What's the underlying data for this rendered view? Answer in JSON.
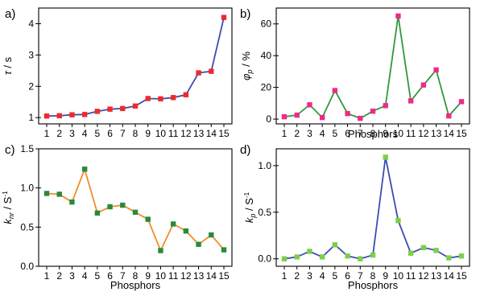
{
  "chart_data": [
    {
      "panel_label": "a)",
      "type": "line",
      "xlabel": "Phosphors",
      "ylabel_parts": [
        "τ",
        " / s"
      ],
      "categories": [
        "1",
        "2",
        "3",
        "4",
        "5",
        "6",
        "7",
        "8",
        "9",
        "10",
        "11",
        "12",
        "13",
        "14",
        "15"
      ],
      "values": [
        1.05,
        1.06,
        1.09,
        1.1,
        1.2,
        1.27,
        1.29,
        1.37,
        1.61,
        1.6,
        1.64,
        1.73,
        2.43,
        2.48,
        4.2
      ],
      "ylim": [
        0.8,
        4.5
      ],
      "yticks": [
        "1",
        "2",
        "3",
        "4"
      ],
      "line_color": "#3a4db0",
      "marker_color": "#ee2a2a",
      "show_xlabel": false
    },
    {
      "panel_label": "b)",
      "type": "line",
      "xlabel": "Phosphors",
      "ylabel_parts": [
        "φ",
        "p",
        " / %"
      ],
      "categories": [
        "1",
        "2",
        "3",
        "4",
        "5",
        "6",
        "7",
        "8",
        "9",
        "10",
        "11",
        "12",
        "13",
        "14",
        "15"
      ],
      "values": [
        1.5,
        2.5,
        9,
        1,
        18,
        3.5,
        0.5,
        5,
        8.5,
        65,
        11.5,
        21.5,
        31,
        2,
        11
      ],
      "ylim": [
        -3,
        70
      ],
      "yticks": [
        "0",
        "20",
        "40",
        "60"
      ],
      "line_color": "#2e9a3a",
      "marker_color": "#ee2a8a",
      "show_xlabel": true
    },
    {
      "panel_label": "c)",
      "type": "line",
      "xlabel": "Phosphors",
      "ylabel_parts": [
        "k",
        "nr",
        " / S",
        "-1"
      ],
      "categories": [
        "1",
        "2",
        "3",
        "4",
        "5",
        "6",
        "7",
        "8",
        "9",
        "10",
        "11",
        "12",
        "13",
        "14",
        "15"
      ],
      "values": [
        0.93,
        0.92,
        0.82,
        1.24,
        0.68,
        0.76,
        0.78,
        0.69,
        0.6,
        0.2,
        0.54,
        0.45,
        0.28,
        0.4,
        0.21
      ],
      "ylim": [
        0,
        1.5
      ],
      "yticks": [
        "0.0",
        "0.5",
        "1.0",
        "1.5"
      ],
      "line_color": "#f08c2a",
      "marker_color": "#2a8a3a",
      "show_xlabel": true
    },
    {
      "panel_label": "d)",
      "type": "line",
      "xlabel": "Phosphors",
      "ylabel_parts": [
        "k",
        "p",
        " / S",
        "-1"
      ],
      "categories": [
        "1",
        "2",
        "3",
        "4",
        "5",
        "6",
        "7",
        "8",
        "9",
        "10",
        "11",
        "12",
        "13",
        "14",
        "15"
      ],
      "values": [
        0.0,
        0.02,
        0.08,
        0.02,
        0.15,
        0.03,
        0.0,
        0.04,
        1.09,
        0.41,
        0.06,
        0.12,
        0.09,
        0.01,
        0.03
      ],
      "ylim": [
        -0.08,
        1.18
      ],
      "yticks": [
        "0.0",
        "0.5",
        "1.0"
      ],
      "line_color": "#3a4db0",
      "marker_color": "#7ccf4a",
      "show_xlabel": true
    }
  ]
}
